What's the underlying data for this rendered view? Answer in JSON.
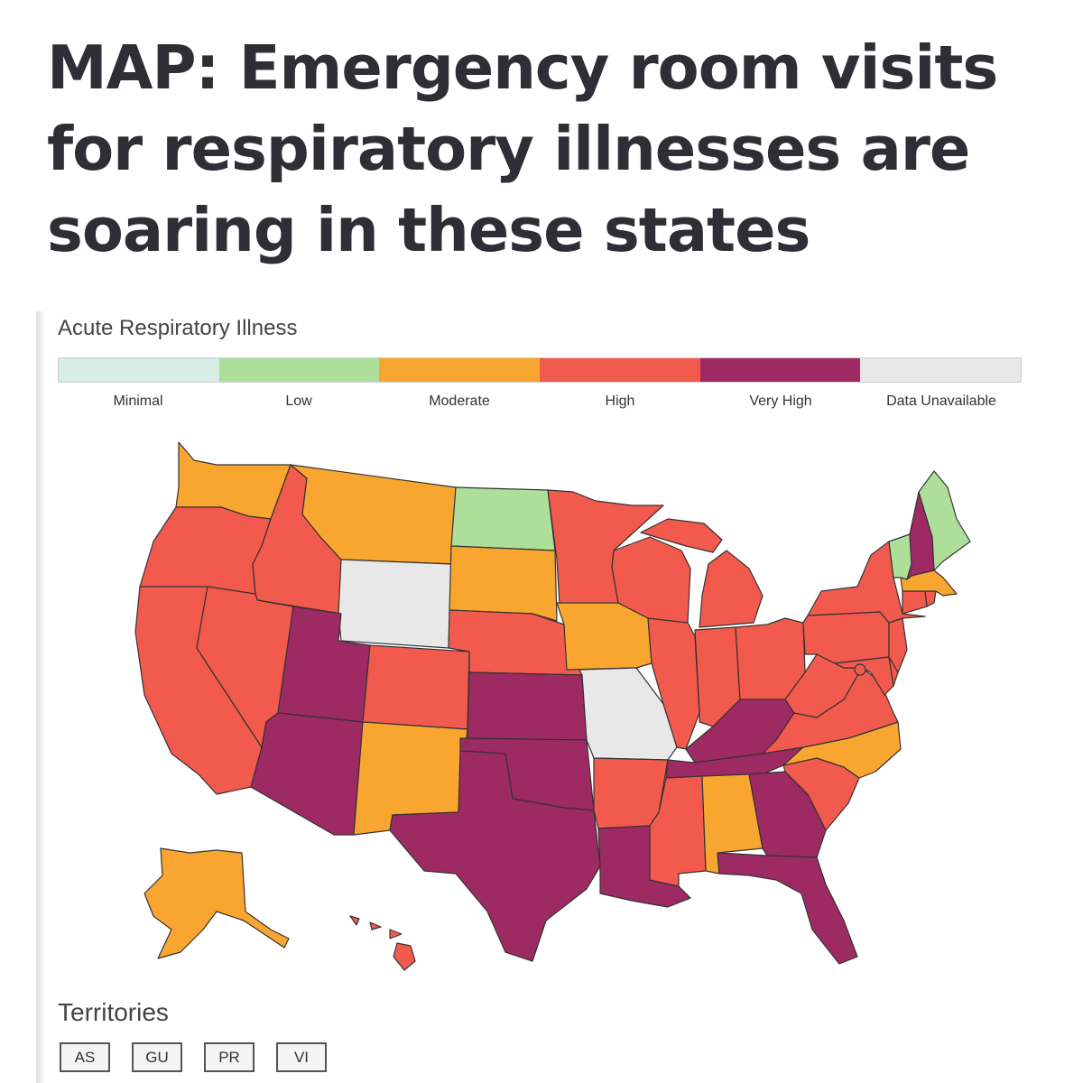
{
  "headline": {
    "line1": "MAP: Emergency room visits",
    "line2": "for respiratory illnesses are",
    "line3": "soaring in these states"
  },
  "legend": {
    "title": "Acute Respiratory Illness",
    "levels": [
      {
        "label": "Minimal",
        "color": "#d5efe6"
      },
      {
        "label": "Low",
        "color": "#addf9b"
      },
      {
        "label": "Moderate",
        "color": "#f9a630"
      },
      {
        "label": "High",
        "color": "#f25a4e"
      },
      {
        "label": "Very High",
        "color": "#9e2a63"
      },
      {
        "label": "Data Unavailable",
        "color": "#e8e8e8"
      }
    ]
  },
  "map": {
    "states": {
      "WA": "Moderate",
      "OR": "High",
      "CA": "High",
      "ID": "High",
      "NV": "High",
      "MT": "Moderate",
      "WY": "Data Unavailable",
      "UT": "Very High",
      "AZ": "Very High",
      "CO": "High",
      "NM": "Moderate",
      "ND": "Low",
      "SD": "Moderate",
      "NE": "High",
      "KS": "Very High",
      "OK": "Very High",
      "TX": "Very High",
      "MN": "High",
      "IA": "Moderate",
      "MO": "Data Unavailable",
      "AR": "High",
      "LA": "Very High",
      "WI": "High",
      "IL": "High",
      "MI": "High",
      "IN": "High",
      "OH": "High",
      "KY": "Very High",
      "TN": "Very High",
      "MS": "High",
      "AL": "Moderate",
      "GA": "Very High",
      "FL": "Very High",
      "SC": "High",
      "NC": "Moderate",
      "VA": "High",
      "WV": "High",
      "PA": "High",
      "NY": "High",
      "NJ": "High",
      "DE": "High",
      "MD": "High",
      "DC": "High",
      "CT": "High",
      "RI": "High",
      "MA": "Moderate",
      "VT": "Low",
      "NH": "Very High",
      "ME": "Low",
      "AK": "Moderate",
      "HI": "High"
    }
  },
  "territories": {
    "title": "Territories",
    "items": [
      "AS",
      "GU",
      "PR",
      "VI"
    ]
  }
}
